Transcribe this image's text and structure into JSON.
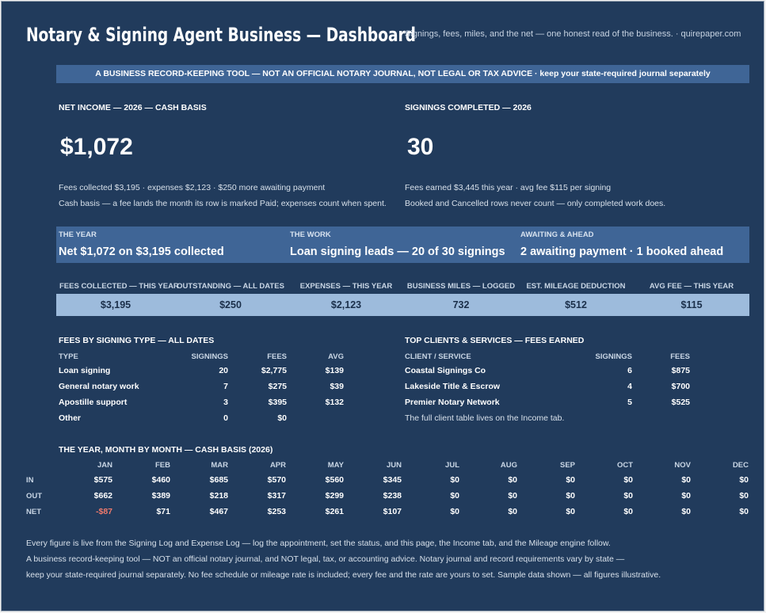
{
  "header": {
    "title": "Notary & Signing Agent Business — Dashboard",
    "subtitle": "Signings, fees, miles, and the net — one honest read of the business.  ·  quirepaper.com"
  },
  "banner": "A BUSINESS RECORD-KEEPING TOOL — NOT AN OFFICIAL NOTARY JOURNAL, NOT LEGAL OR TAX ADVICE  ·  keep your state-required journal separately",
  "net_income": {
    "label": "NET INCOME — 2026 — CASH BASIS",
    "value": "$1,072",
    "line1": "Fees collected $3,195  ·  expenses $2,123  ·  $250 more awaiting payment",
    "line2": "Cash basis — a fee lands the month its row is marked Paid; expenses count when spent."
  },
  "signings": {
    "label": "SIGNINGS COMPLETED — 2026",
    "value": "30",
    "line1": "Fees earned $3,445 this year  ·  avg fee $115 per signing",
    "line2": "Booked and Cancelled rows never count — only completed work does."
  },
  "band": [
    {
      "label": "THE YEAR",
      "value": "Net $1,072 on $3,195 collected"
    },
    {
      "label": "THE WORK",
      "value": "Loan signing leads — 20 of 30 signings"
    },
    {
      "label": "AWAITING & AHEAD",
      "value": "2 awaiting payment · 1 booked ahead"
    }
  ],
  "kpis": [
    {
      "label": "FEES COLLECTED — THIS YEAR",
      "value": "$3,195"
    },
    {
      "label": "OUTSTANDING — ALL DATES",
      "value": "$250"
    },
    {
      "label": "EXPENSES — THIS YEAR",
      "value": "$2,123"
    },
    {
      "label": "BUSINESS MILES — LOGGED",
      "value": "732"
    },
    {
      "label": "EST. MILEAGE DEDUCTION",
      "value": "$512"
    },
    {
      "label": "AVG FEE — THIS YEAR",
      "value": "$115"
    }
  ],
  "fees_by_type": {
    "title": "FEES BY SIGNING TYPE — ALL DATES",
    "headers": [
      "TYPE",
      "SIGNINGS",
      "FEES",
      "AVG"
    ],
    "rows": [
      [
        "Loan signing",
        "20",
        "$2,775",
        "$139"
      ],
      [
        "General notary work",
        "7",
        "$275",
        "$39"
      ],
      [
        "Apostille support",
        "3",
        "$395",
        "$132"
      ],
      [
        "Other",
        "0",
        "$0",
        ""
      ]
    ]
  },
  "top_clients": {
    "title": "TOP CLIENTS & SERVICES — FEES EARNED",
    "headers": [
      "CLIENT / SERVICE",
      "SIGNINGS",
      "FEES"
    ],
    "rows": [
      [
        "Coastal Signings Co",
        "6",
        "$875"
      ],
      [
        "Lakeside Title & Escrow",
        "4",
        "$700"
      ],
      [
        "Premier Notary Network",
        "5",
        "$525"
      ]
    ],
    "note": "The full client table lives on the Income tab."
  },
  "monthly": {
    "title": "THE YEAR, MONTH BY MONTH — CASH BASIS (2026)",
    "months": [
      "JAN",
      "FEB",
      "MAR",
      "APR",
      "MAY",
      "JUN",
      "JUL",
      "AUG",
      "SEP",
      "OCT",
      "NOV",
      "DEC"
    ],
    "rows": [
      {
        "label": "IN",
        "values": [
          "$575",
          "$460",
          "$685",
          "$570",
          "$560",
          "$345",
          "$0",
          "$0",
          "$0",
          "$0",
          "$0",
          "$0"
        ]
      },
      {
        "label": "OUT",
        "values": [
          "$662",
          "$389",
          "$218",
          "$317",
          "$299",
          "$238",
          "$0",
          "$0",
          "$0",
          "$0",
          "$0",
          "$0"
        ]
      },
      {
        "label": "NET",
        "values": [
          "-$87",
          "$71",
          "$467",
          "$253",
          "$261",
          "$107",
          "$0",
          "$0",
          "$0",
          "$0",
          "$0",
          "$0"
        ]
      }
    ]
  },
  "footer": [
    "Every figure is live from the Signing Log and Expense Log — log the appointment, set the status, and this page, the Income tab, and the Mileage engine follow.",
    "A business record-keeping tool — NOT an official notary journal, and NOT legal, tax, or accounting advice. Notary journal and record requirements vary by state —",
    "keep your state-required journal separately. No fee schedule or mileage rate is included; every fee and the rate are yours to set. Sample data shown — all figures illustrative."
  ]
}
